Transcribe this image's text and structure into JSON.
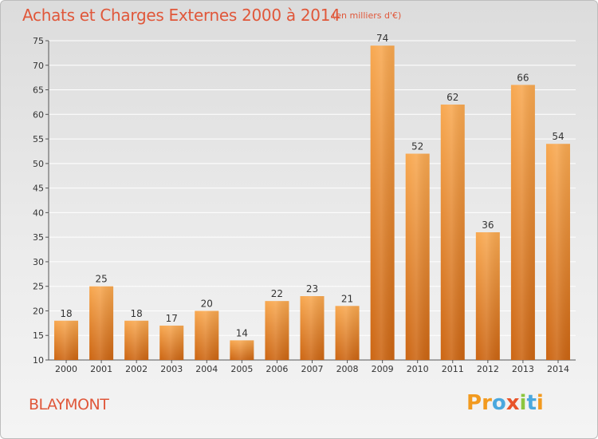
{
  "header": {
    "title": "Achats et Charges Externes 2000 à 2014",
    "subtitle": "(en milliers d'€)"
  },
  "footer": {
    "place": "BLAYMONT",
    "logo_letters": [
      "P",
      "r",
      "o",
      "x",
      "i",
      "t",
      "i"
    ]
  },
  "colors": {
    "title": "#e0573a",
    "bar_top": "#f8a850",
    "bar_bottom": "#cc6512",
    "logo": [
      "#f29a1f",
      "#f29a1f",
      "#4aa8de",
      "#e8542a",
      "#8cc63f",
      "#4aa8de",
      "#f29a1f"
    ]
  },
  "chart_data": {
    "type": "bar",
    "title": "Achats et Charges Externes 2000 à 2014",
    "subtitle": "(en milliers d'€)",
    "categories": [
      "2000",
      "2001",
      "2002",
      "2003",
      "2004",
      "2005",
      "2006",
      "2007",
      "2008",
      "2009",
      "2010",
      "2011",
      "2012",
      "2013",
      "2014"
    ],
    "values": [
      18,
      25,
      18,
      17,
      20,
      14,
      22,
      23,
      21,
      74,
      52,
      62,
      36,
      66,
      54
    ],
    "ylim": [
      10,
      75
    ],
    "yticks": [
      10,
      15,
      20,
      25,
      30,
      35,
      40,
      45,
      50,
      55,
      60,
      65,
      70,
      75
    ],
    "grid": true,
    "legend": "none"
  }
}
